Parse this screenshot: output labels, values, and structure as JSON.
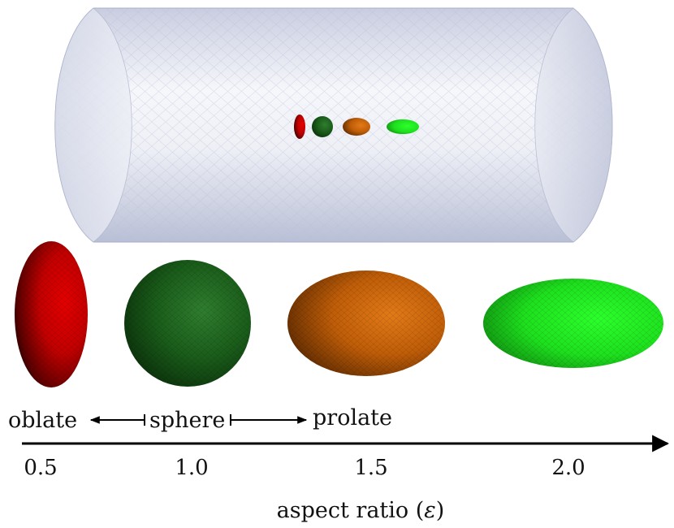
{
  "labels": {
    "oblate": "oblate",
    "sphere": "sphere",
    "prolate": "prolate",
    "axis_title_prefix": "aspect ratio (",
    "axis_title_symbol": "ε",
    "axis_title_suffix": ")"
  },
  "ticks": [
    "0.5",
    "1.0",
    "1.5",
    "2.0"
  ],
  "particles": [
    {
      "name": "oblate-ellipsoid",
      "aspect_ratio": 0.5,
      "color": "#d10000"
    },
    {
      "name": "sphere",
      "aspect_ratio": 1.0,
      "color": "#1a6b1a"
    },
    {
      "name": "prolate-ellipsoid-orange",
      "aspect_ratio": 1.5,
      "color": "#d46a0c"
    },
    {
      "name": "prolate-ellipsoid-green",
      "aspect_ratio": 2.0,
      "color": "#22e822"
    }
  ],
  "colors": {
    "cylinder": "#dfe2ee",
    "cylinder_edge": "#9ea5c2",
    "axis": "#000000"
  }
}
